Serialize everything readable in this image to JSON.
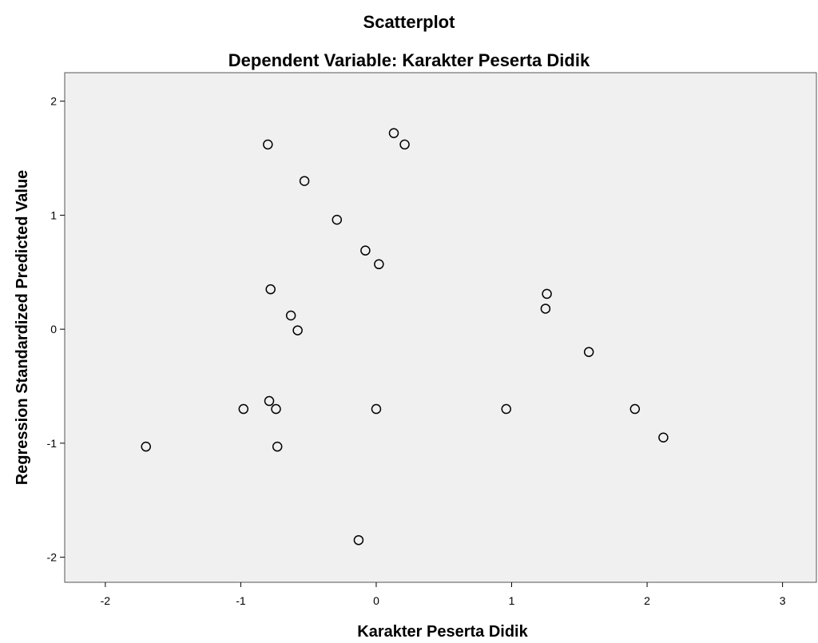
{
  "chart_data": {
    "type": "scatter",
    "title": "Scatterplot",
    "subtitle": "Dependent Variable: Karakter Peserta Didik",
    "xlabel": "Karakter Peserta Didik",
    "ylabel": "Regression Standardized Predicted Value",
    "xlim": [
      -2.3,
      3.25
    ],
    "ylim": [
      -2.22,
      2.25
    ],
    "x_ticks": [
      -2,
      -1,
      0,
      1,
      2,
      3
    ],
    "y_ticks": [
      -2,
      -1,
      0,
      1,
      2
    ],
    "x_tick_labels": [
      "-2",
      "-1",
      "0",
      "1",
      "2",
      "3"
    ],
    "y_tick_labels": [
      "-2",
      "-1",
      "0",
      "1",
      "2"
    ],
    "grid": false,
    "plot_background": "#f0f0f0",
    "marker_color": "#000000",
    "series": [
      {
        "points": [
          [
            -1.7,
            -1.03
          ],
          [
            -0.98,
            -0.7
          ],
          [
            -0.79,
            -0.63
          ],
          [
            -0.74,
            -0.7
          ],
          [
            -0.73,
            -1.03
          ],
          [
            -0.8,
            1.62
          ],
          [
            -0.53,
            1.3
          ],
          [
            -0.78,
            0.35
          ],
          [
            -0.63,
            0.12
          ],
          [
            -0.58,
            -0.01
          ],
          [
            -0.29,
            0.96
          ],
          [
            -0.08,
            0.69
          ],
          [
            0.02,
            0.57
          ],
          [
            0.13,
            1.72
          ],
          [
            0.21,
            1.62
          ],
          [
            0.0,
            -0.7
          ],
          [
            -0.13,
            -1.85
          ],
          [
            0.96,
            -0.7
          ],
          [
            1.26,
            0.31
          ],
          [
            1.25,
            0.18
          ],
          [
            1.57,
            -0.2
          ],
          [
            1.91,
            -0.7
          ],
          [
            2.12,
            -0.95
          ]
        ]
      }
    ]
  }
}
